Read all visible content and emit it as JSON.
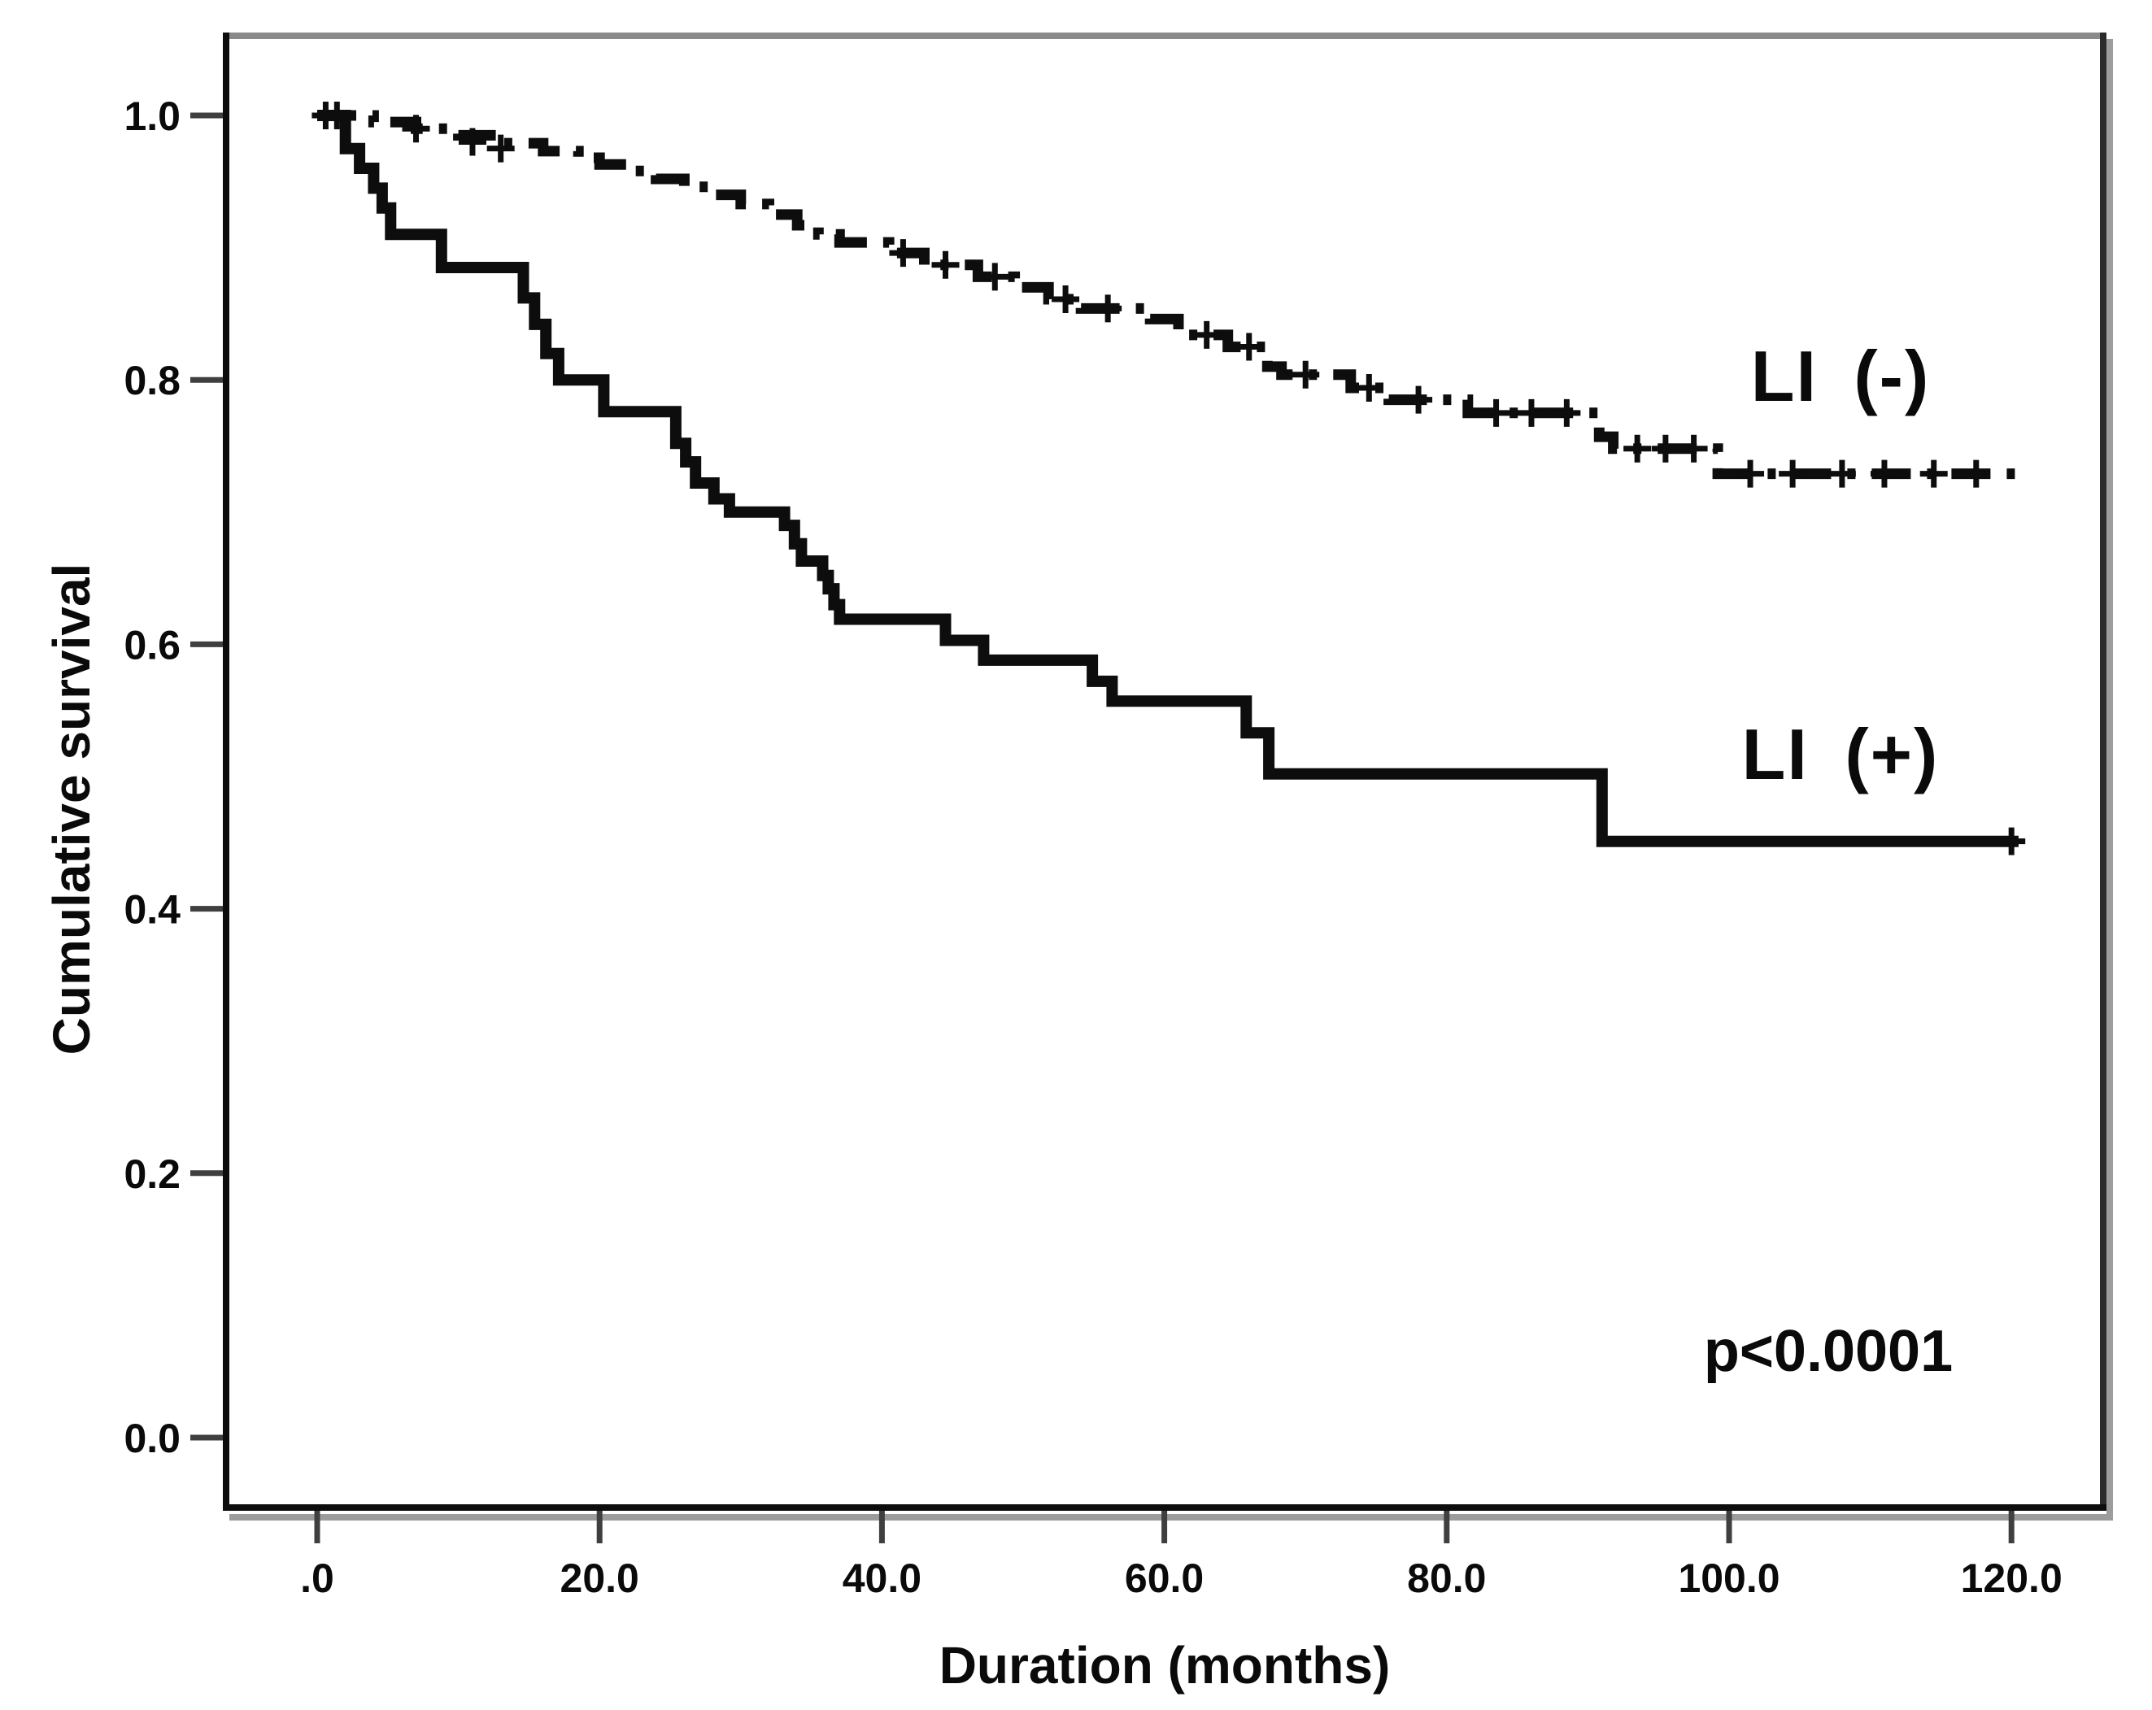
{
  "chart_data": {
    "type": "line",
    "subtype": "kaplan-meier-step-curves",
    "title": "",
    "xlabel": "Duration (months)",
    "ylabel": "Cumulative survival",
    "x_ticks": {
      "values": [
        0,
        20,
        40,
        60,
        80,
        100,
        120
      ],
      "labels": [
        ".0",
        "20.0",
        "40.0",
        "60.0",
        "80.0",
        "100.0",
        "120.0"
      ]
    },
    "y_ticks": {
      "values": [
        1.0,
        0.8,
        0.6,
        0.4,
        0.2,
        0.0
      ],
      "labels": [
        "1.0",
        "0.8",
        "0.6",
        "0.4",
        "0.2",
        "0.0"
      ]
    },
    "xlim": [
      -6.7,
      126.7
    ],
    "ylim": [
      -0.055,
      1.063
    ],
    "grid": false,
    "legend_position": "inline-right",
    "line_color": "#0d0d0d",
    "annotations": [
      {
        "text": "p<0.0001",
        "x_month": 97,
        "y_survival": 0.065
      }
    ],
    "series": [
      {
        "name": "LI (-)",
        "label": "LI (-)",
        "line_style": "dash-dot",
        "color": "#0d0d0d",
        "end_t": 120.4,
        "points": [
          [
            0,
            1.0
          ],
          [
            4,
            0.995
          ],
          [
            7,
            0.99
          ],
          [
            10,
            0.985
          ],
          [
            13,
            0.979
          ],
          [
            16,
            0.973
          ],
          [
            18.5,
            0.968
          ],
          [
            20,
            0.963
          ],
          [
            22,
            0.958
          ],
          [
            24,
            0.952
          ],
          [
            26,
            0.946
          ],
          [
            28,
            0.94
          ],
          [
            30,
            0.933
          ],
          [
            32,
            0.925
          ],
          [
            34,
            0.917
          ],
          [
            35.5,
            0.91
          ],
          [
            37,
            0.904
          ],
          [
            40.5,
            0.896
          ],
          [
            43,
            0.887
          ],
          [
            46.8,
            0.878
          ],
          [
            49.4,
            0.87
          ],
          [
            51.8,
            0.861
          ],
          [
            54.1,
            0.854
          ],
          [
            59,
            0.846
          ],
          [
            61,
            0.834
          ],
          [
            64.5,
            0.825
          ],
          [
            67.3,
            0.81
          ],
          [
            68.3,
            0.804
          ],
          [
            73.2,
            0.794
          ],
          [
            75.9,
            0.785
          ],
          [
            81.5,
            0.775
          ],
          [
            90.8,
            0.757
          ],
          [
            91.8,
            0.748
          ],
          [
            99.2,
            0.729
          ]
        ],
        "censor_marks": [
          [
            7,
            0.99
          ],
          [
            11,
            0.98
          ],
          [
            13,
            0.975
          ],
          [
            41.5,
            0.896
          ],
          [
            44.5,
            0.887
          ],
          [
            48,
            0.878
          ],
          [
            53,
            0.861
          ],
          [
            56,
            0.854
          ],
          [
            63,
            0.834
          ],
          [
            66,
            0.825
          ],
          [
            70,
            0.804
          ],
          [
            74.5,
            0.794
          ],
          [
            78,
            0.785
          ],
          [
            83.5,
            0.775
          ],
          [
            86,
            0.775
          ],
          [
            88.5,
            0.775
          ],
          [
            93.5,
            0.748
          ],
          [
            95.5,
            0.748
          ],
          [
            97.5,
            0.748
          ],
          [
            101.5,
            0.729
          ],
          [
            104.5,
            0.729
          ],
          [
            108,
            0.729
          ],
          [
            111,
            0.729
          ],
          [
            114.5,
            0.729
          ],
          [
            117.5,
            0.729
          ]
        ]
      },
      {
        "name": "LI (+)",
        "label": "LI (+)",
        "line_style": "solid",
        "color": "#0d0d0d",
        "end_t": 120.5,
        "points": [
          [
            0,
            1.0
          ],
          [
            2,
            0.975
          ],
          [
            3,
            0.96
          ],
          [
            4,
            0.945
          ],
          [
            4.6,
            0.93
          ],
          [
            5.2,
            0.91
          ],
          [
            8.8,
            0.885
          ],
          [
            14.6,
            0.862
          ],
          [
            15.4,
            0.842
          ],
          [
            16.2,
            0.82
          ],
          [
            17.1,
            0.8
          ],
          [
            20.3,
            0.776
          ],
          [
            25.4,
            0.752
          ],
          [
            26.1,
            0.738
          ],
          [
            26.8,
            0.722
          ],
          [
            28.1,
            0.71
          ],
          [
            29.2,
            0.7
          ],
          [
            33.1,
            0.69
          ],
          [
            33.8,
            0.676
          ],
          [
            34.3,
            0.663
          ],
          [
            35.8,
            0.652
          ],
          [
            36.2,
            0.642
          ],
          [
            36.6,
            0.63
          ],
          [
            37.0,
            0.619
          ],
          [
            44.5,
            0.603
          ],
          [
            47.2,
            0.588
          ],
          [
            54.9,
            0.572
          ],
          [
            56.3,
            0.557
          ],
          [
            65.8,
            0.533
          ],
          [
            67.4,
            0.502
          ],
          [
            91.0,
            0.451
          ]
        ],
        "censor_marks": [
          [
            0.6,
            1.0
          ],
          [
            1.4,
            1.0
          ],
          [
            120,
            0.451
          ]
        ]
      }
    ]
  }
}
